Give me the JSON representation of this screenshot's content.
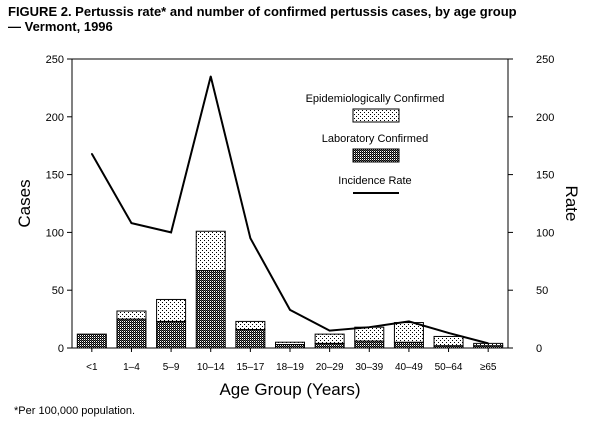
{
  "figure": {
    "title": "FIGURE 2. Pertussis rate* and number of confirmed pertussis cases, by age group\n— Vermont, 1996",
    "footnote": "*Per 100,000 population."
  },
  "chart_data": {
    "type": "bar",
    "title": "FIGURE 2. Pertussis rate* and number of confirmed pertussis cases, by age group — Vermont, 1996",
    "xlabel": "Age Group (Years)",
    "ylabel": "Cases",
    "y2label": "Rate",
    "ylim": [
      0,
      250
    ],
    "y2lim": [
      0,
      250
    ],
    "yticks": [
      0,
      50,
      100,
      150,
      200,
      250
    ],
    "stacked": true,
    "categories": [
      "<1",
      "1–4",
      "5–9",
      "10–14",
      "15–17",
      "18–19",
      "20–29",
      "30–39",
      "40–49",
      "50–64",
      "≥65"
    ],
    "series": [
      {
        "name": "Laboratory Confirmed",
        "kind": "bar",
        "pattern": "dense",
        "values": [
          12,
          25,
          23,
          67,
          16,
          3,
          4,
          6,
          5,
          2,
          2
        ]
      },
      {
        "name": "Epidemiologically Confirmed",
        "kind": "bar",
        "pattern": "sparse",
        "values": [
          0,
          7,
          19,
          34,
          7,
          2,
          8,
          12,
          17,
          8,
          2
        ]
      },
      {
        "name": "Incidence Rate",
        "kind": "line",
        "axis": "right",
        "values": [
          168,
          108,
          100,
          235,
          95,
          33,
          15,
          18,
          23,
          13,
          4
        ]
      }
    ],
    "legend": {
      "position": "upper-right",
      "items": [
        "Epidemiologically Confirmed",
        "Laboratory Confirmed",
        "Incidence Rate"
      ]
    },
    "grid": false
  }
}
